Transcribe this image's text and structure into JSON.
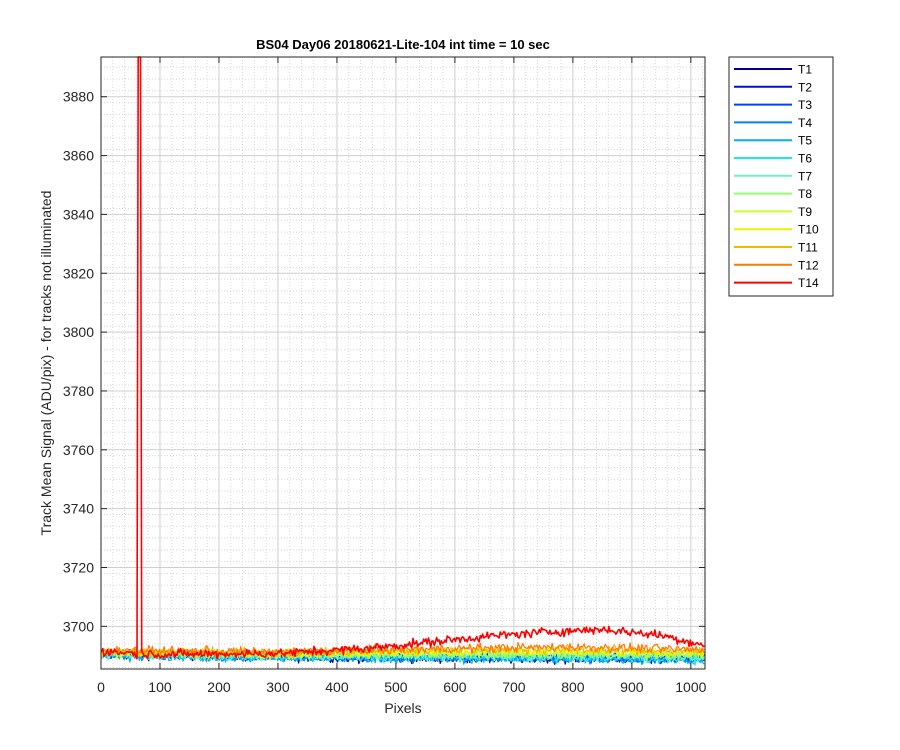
{
  "chart_data": {
    "type": "line",
    "title": "BS04 Day06 20180621-Lite-104 int time = 10 sec",
    "xlabel": "Pixels",
    "ylabel": "Track Mean Signal (ADU/pix) - for tracks not illuminated",
    "xlim": [
      0,
      1024
    ],
    "ylim": [
      3685.5,
      3893.5
    ],
    "x_ticks": [
      0,
      100,
      200,
      300,
      400,
      500,
      600,
      700,
      800,
      900,
      1000
    ],
    "y_ticks": [
      3700,
      3720,
      3740,
      3760,
      3780,
      3800,
      3820,
      3840,
      3860,
      3880
    ],
    "grid": true,
    "minor_grid": true,
    "legend_position": "outside-right",
    "spike": {
      "series": "T14",
      "x": 65,
      "y_peak": 3893.5
    },
    "series": [
      {
        "name": "T1",
        "color": "#00008F",
        "baseline": [
          [
            0,
            3690.5
          ],
          [
            300,
            3689.5
          ],
          [
            600,
            3689.0
          ],
          [
            1024,
            3689.0
          ]
        ]
      },
      {
        "name": "T2",
        "color": "#0010C8",
        "baseline": [
          [
            0,
            3690.5
          ],
          [
            300,
            3689.5
          ],
          [
            600,
            3689.2
          ],
          [
            1024,
            3689.2
          ]
        ]
      },
      {
        "name": "T3",
        "color": "#0040FF",
        "baseline": [
          [
            0,
            3690.6
          ],
          [
            300,
            3689.8
          ],
          [
            600,
            3689.5
          ],
          [
            1024,
            3689.5
          ]
        ]
      },
      {
        "name": "T4",
        "color": "#0080FF",
        "baseline": [
          [
            0,
            3690.2
          ],
          [
            300,
            3689.5
          ],
          [
            600,
            3689.2
          ],
          [
            1024,
            3689.0
          ]
        ]
      },
      {
        "name": "T5",
        "color": "#00B0F0",
        "baseline": [
          [
            0,
            3690.0
          ],
          [
            300,
            3689.2
          ],
          [
            600,
            3689.0
          ],
          [
            1024,
            3688.5
          ]
        ]
      },
      {
        "name": "T6",
        "color": "#20E8E8",
        "baseline": [
          [
            0,
            3690.2
          ],
          [
            300,
            3689.5
          ],
          [
            600,
            3689.5
          ],
          [
            1024,
            3689.0
          ]
        ]
      },
      {
        "name": "T7",
        "color": "#70F0C0",
        "baseline": [
          [
            0,
            3690.5
          ],
          [
            300,
            3690.0
          ],
          [
            600,
            3690.0
          ],
          [
            1024,
            3689.8
          ]
        ]
      },
      {
        "name": "T8",
        "color": "#90FF70",
        "baseline": [
          [
            0,
            3690.8
          ],
          [
            300,
            3690.3
          ],
          [
            600,
            3690.5
          ],
          [
            1024,
            3690.2
          ]
        ]
      },
      {
        "name": "T9",
        "color": "#C8FF30",
        "baseline": [
          [
            0,
            3691.0
          ],
          [
            300,
            3690.6
          ],
          [
            600,
            3691.0
          ],
          [
            1024,
            3690.8
          ]
        ]
      },
      {
        "name": "T10",
        "color": "#F0F000",
        "baseline": [
          [
            0,
            3691.2
          ],
          [
            300,
            3690.8
          ],
          [
            600,
            3691.5
          ],
          [
            1024,
            3691.2
          ]
        ]
      },
      {
        "name": "T11",
        "color": "#F0B800",
        "baseline": [
          [
            0,
            3691.5
          ],
          [
            300,
            3691.0
          ],
          [
            600,
            3692.0
          ],
          [
            800,
            3692.2
          ],
          [
            1024,
            3691.5
          ]
        ]
      },
      {
        "name": "T12",
        "color": "#FF7800",
        "baseline": [
          [
            0,
            3691.8
          ],
          [
            300,
            3691.3
          ],
          [
            600,
            3692.5
          ],
          [
            800,
            3693.0
          ],
          [
            1024,
            3692.0
          ]
        ]
      },
      {
        "name": "T14",
        "color": "#FF0000",
        "baseline": [
          [
            0,
            3691.5
          ],
          [
            100,
            3690.5
          ],
          [
            300,
            3690.8
          ],
          [
            450,
            3692.5
          ],
          [
            550,
            3694.5
          ],
          [
            650,
            3696.5
          ],
          [
            750,
            3698.0
          ],
          [
            850,
            3699.0
          ],
          [
            950,
            3697.0
          ],
          [
            1024,
            3693.5
          ]
        ]
      }
    ]
  }
}
